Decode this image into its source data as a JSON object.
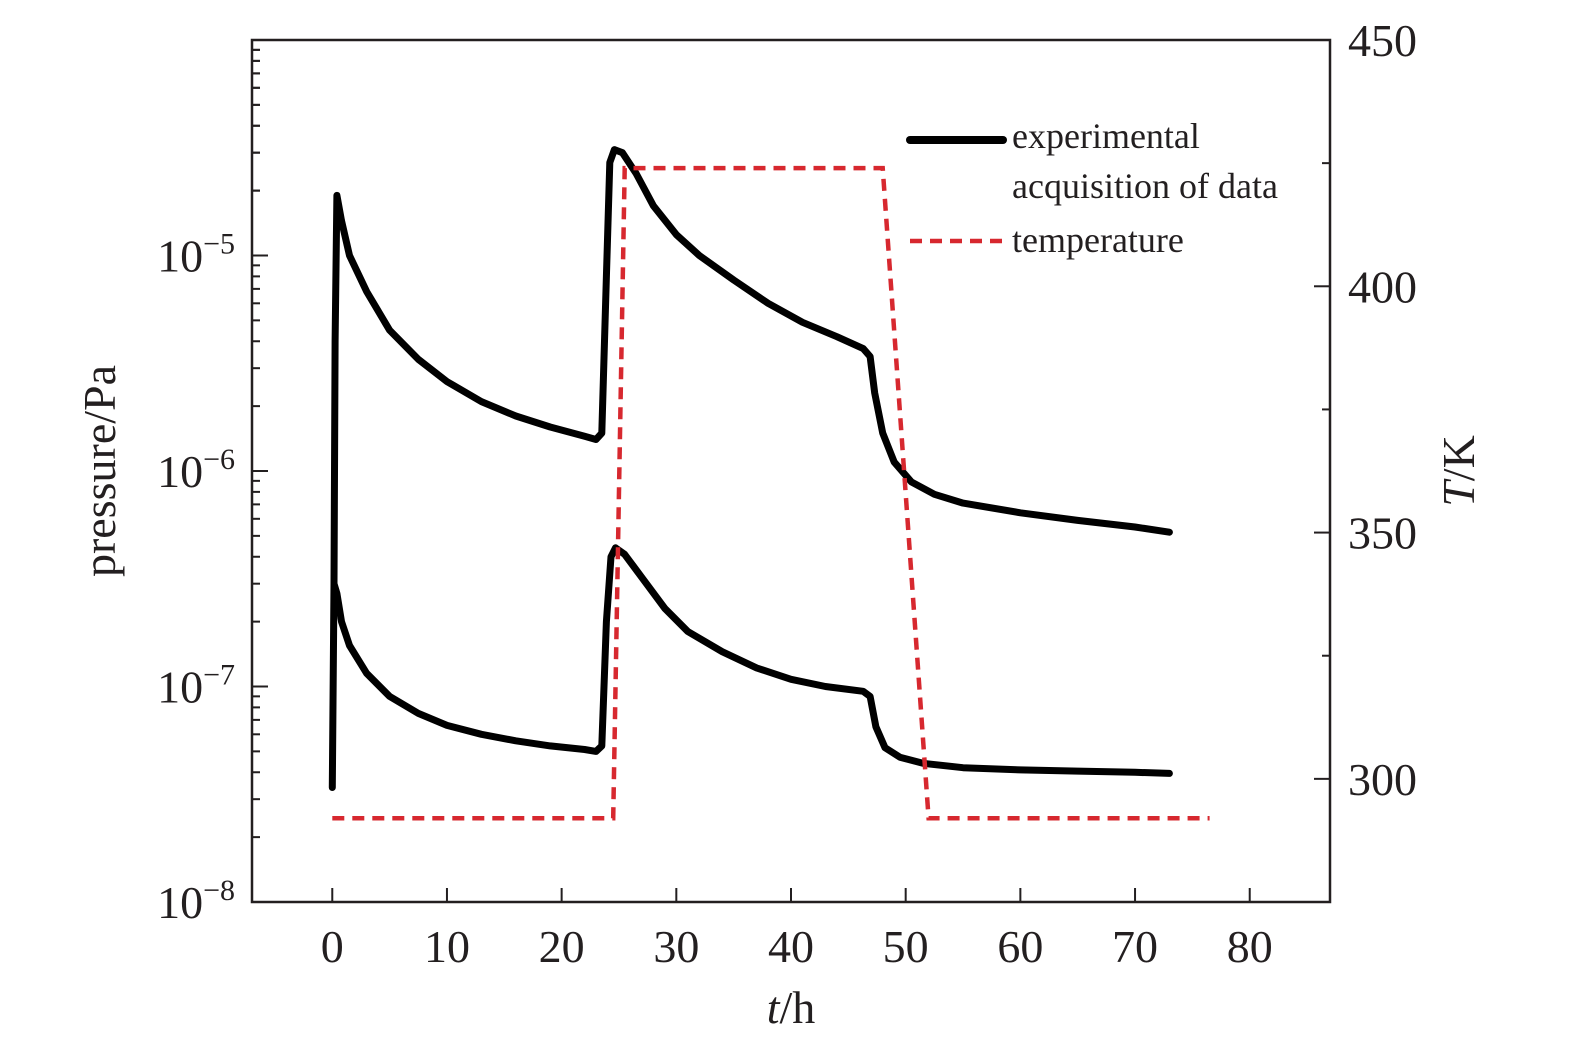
{
  "chart_data": {
    "type": "line",
    "xlabel": {
      "italic": "t",
      "rest": "/h"
    },
    "ylabel_left": "pressure/Pa",
    "ylabel_right": {
      "italic": "T",
      "rest": "/K"
    },
    "x_range": [
      -7,
      87
    ],
    "x_ticks": [
      0,
      10,
      20,
      30,
      40,
      50,
      60,
      70,
      80
    ],
    "y_left_scale": "log",
    "y_left_range": [
      1e-08,
      0.0001
    ],
    "y_left_ticks": [
      {
        "exp": -8,
        "base": "10",
        "sup": "−8"
      },
      {
        "exp": -7,
        "base": "10",
        "sup": "−7"
      },
      {
        "exp": -6,
        "base": "10",
        "sup": "−6"
      },
      {
        "exp": -5,
        "base": "10",
        "sup": "−5"
      }
    ],
    "y_right_range": [
      275,
      450
    ],
    "y_right_ticks": [
      300,
      350,
      400,
      450
    ],
    "grid": false,
    "legend_position": "top-right",
    "legend": [
      {
        "label_lines": [
          "experimental",
          "acquisition of data"
        ],
        "style": "solid",
        "color": "#000000",
        "series": "pressure"
      },
      {
        "label_lines": [
          "temperature"
        ],
        "style": "dashed",
        "color": "#d7282f",
        "series": "temperature"
      }
    ],
    "series": [
      {
        "axis": "left",
        "color": "#000000",
        "style": "solid",
        "points": [
          [
            0,
            3.4e-08
          ],
          [
            0.15,
            3e-07
          ],
          [
            0.25,
            4e-06
          ],
          [
            0.4,
            1.9e-05
          ],
          [
            0.8,
            1.45e-05
          ],
          [
            1.5,
            1e-05
          ],
          [
            3,
            6.8e-06
          ],
          [
            5,
            4.5e-06
          ],
          [
            7.5,
            3.3e-06
          ],
          [
            10,
            2.6e-06
          ],
          [
            13,
            2.1e-06
          ],
          [
            16,
            1.8e-06
          ],
          [
            19,
            1.6e-06
          ],
          [
            22,
            1.45e-06
          ],
          [
            23,
            1.4e-06
          ],
          [
            23.5,
            1.5e-06
          ],
          [
            23.9,
            8e-06
          ],
          [
            24.2,
            2.7e-05
          ],
          [
            24.6,
            3.1e-05
          ],
          [
            25.3,
            3e-05
          ],
          [
            26.5,
            2.4e-05
          ],
          [
            28,
            1.7e-05
          ],
          [
            30,
            1.25e-05
          ],
          [
            32,
            1e-05
          ],
          [
            35,
            7.7e-06
          ],
          [
            38,
            6e-06
          ],
          [
            41,
            4.9e-06
          ],
          [
            44,
            4.2e-06
          ],
          [
            46.3,
            3.7e-06
          ],
          [
            46.9,
            3.4e-06
          ],
          [
            47.3,
            2.3e-06
          ],
          [
            48,
            1.5e-06
          ],
          [
            49,
            1.1e-06
          ],
          [
            50.5,
            8.9e-07
          ],
          [
            52.5,
            7.8e-07
          ],
          [
            55,
            7.1e-07
          ],
          [
            60,
            6.4e-07
          ],
          [
            65,
            5.9e-07
          ],
          [
            70,
            5.5e-07
          ],
          [
            73,
            5.2e-07
          ]
        ]
      },
      {
        "axis": "left",
        "color": "#000000",
        "style": "solid",
        "points": [
          [
            0.15,
            3e-07
          ],
          [
            0.4,
            2.7e-07
          ],
          [
            0.8,
            2e-07
          ],
          [
            1.5,
            1.55e-07
          ],
          [
            3,
            1.15e-07
          ],
          [
            5,
            9e-08
          ],
          [
            7.5,
            7.5e-08
          ],
          [
            10,
            6.6e-08
          ],
          [
            13,
            6e-08
          ],
          [
            16,
            5.6e-08
          ],
          [
            19,
            5.3e-08
          ],
          [
            22,
            5.1e-08
          ],
          [
            23,
            5e-08
          ],
          [
            23.5,
            5.3e-08
          ],
          [
            23.9,
            2e-07
          ],
          [
            24.3,
            4e-07
          ],
          [
            24.7,
            4.4e-07
          ],
          [
            25.5,
            4.1e-07
          ],
          [
            27,
            3.2e-07
          ],
          [
            29,
            2.3e-07
          ],
          [
            31,
            1.8e-07
          ],
          [
            34,
            1.45e-07
          ],
          [
            37,
            1.22e-07
          ],
          [
            40,
            1.08e-07
          ],
          [
            43,
            1e-07
          ],
          [
            46.3,
            9.5e-08
          ],
          [
            46.9,
            9e-08
          ],
          [
            47.4,
            6.5e-08
          ],
          [
            48.2,
            5.2e-08
          ],
          [
            49.5,
            4.7e-08
          ],
          [
            51.5,
            4.4e-08
          ],
          [
            55,
            4.2e-08
          ],
          [
            60,
            4.1e-08
          ],
          [
            65,
            4.05e-08
          ],
          [
            70,
            4e-08
          ],
          [
            73,
            3.95e-08
          ]
        ]
      },
      {
        "axis": "right",
        "color": "#d7282f",
        "style": "dashed",
        "points": [
          [
            0,
            292
          ],
          [
            24.5,
            292
          ],
          [
            25.5,
            424
          ],
          [
            48,
            424
          ],
          [
            52,
            292
          ],
          [
            76.5,
            292
          ]
        ]
      }
    ]
  }
}
